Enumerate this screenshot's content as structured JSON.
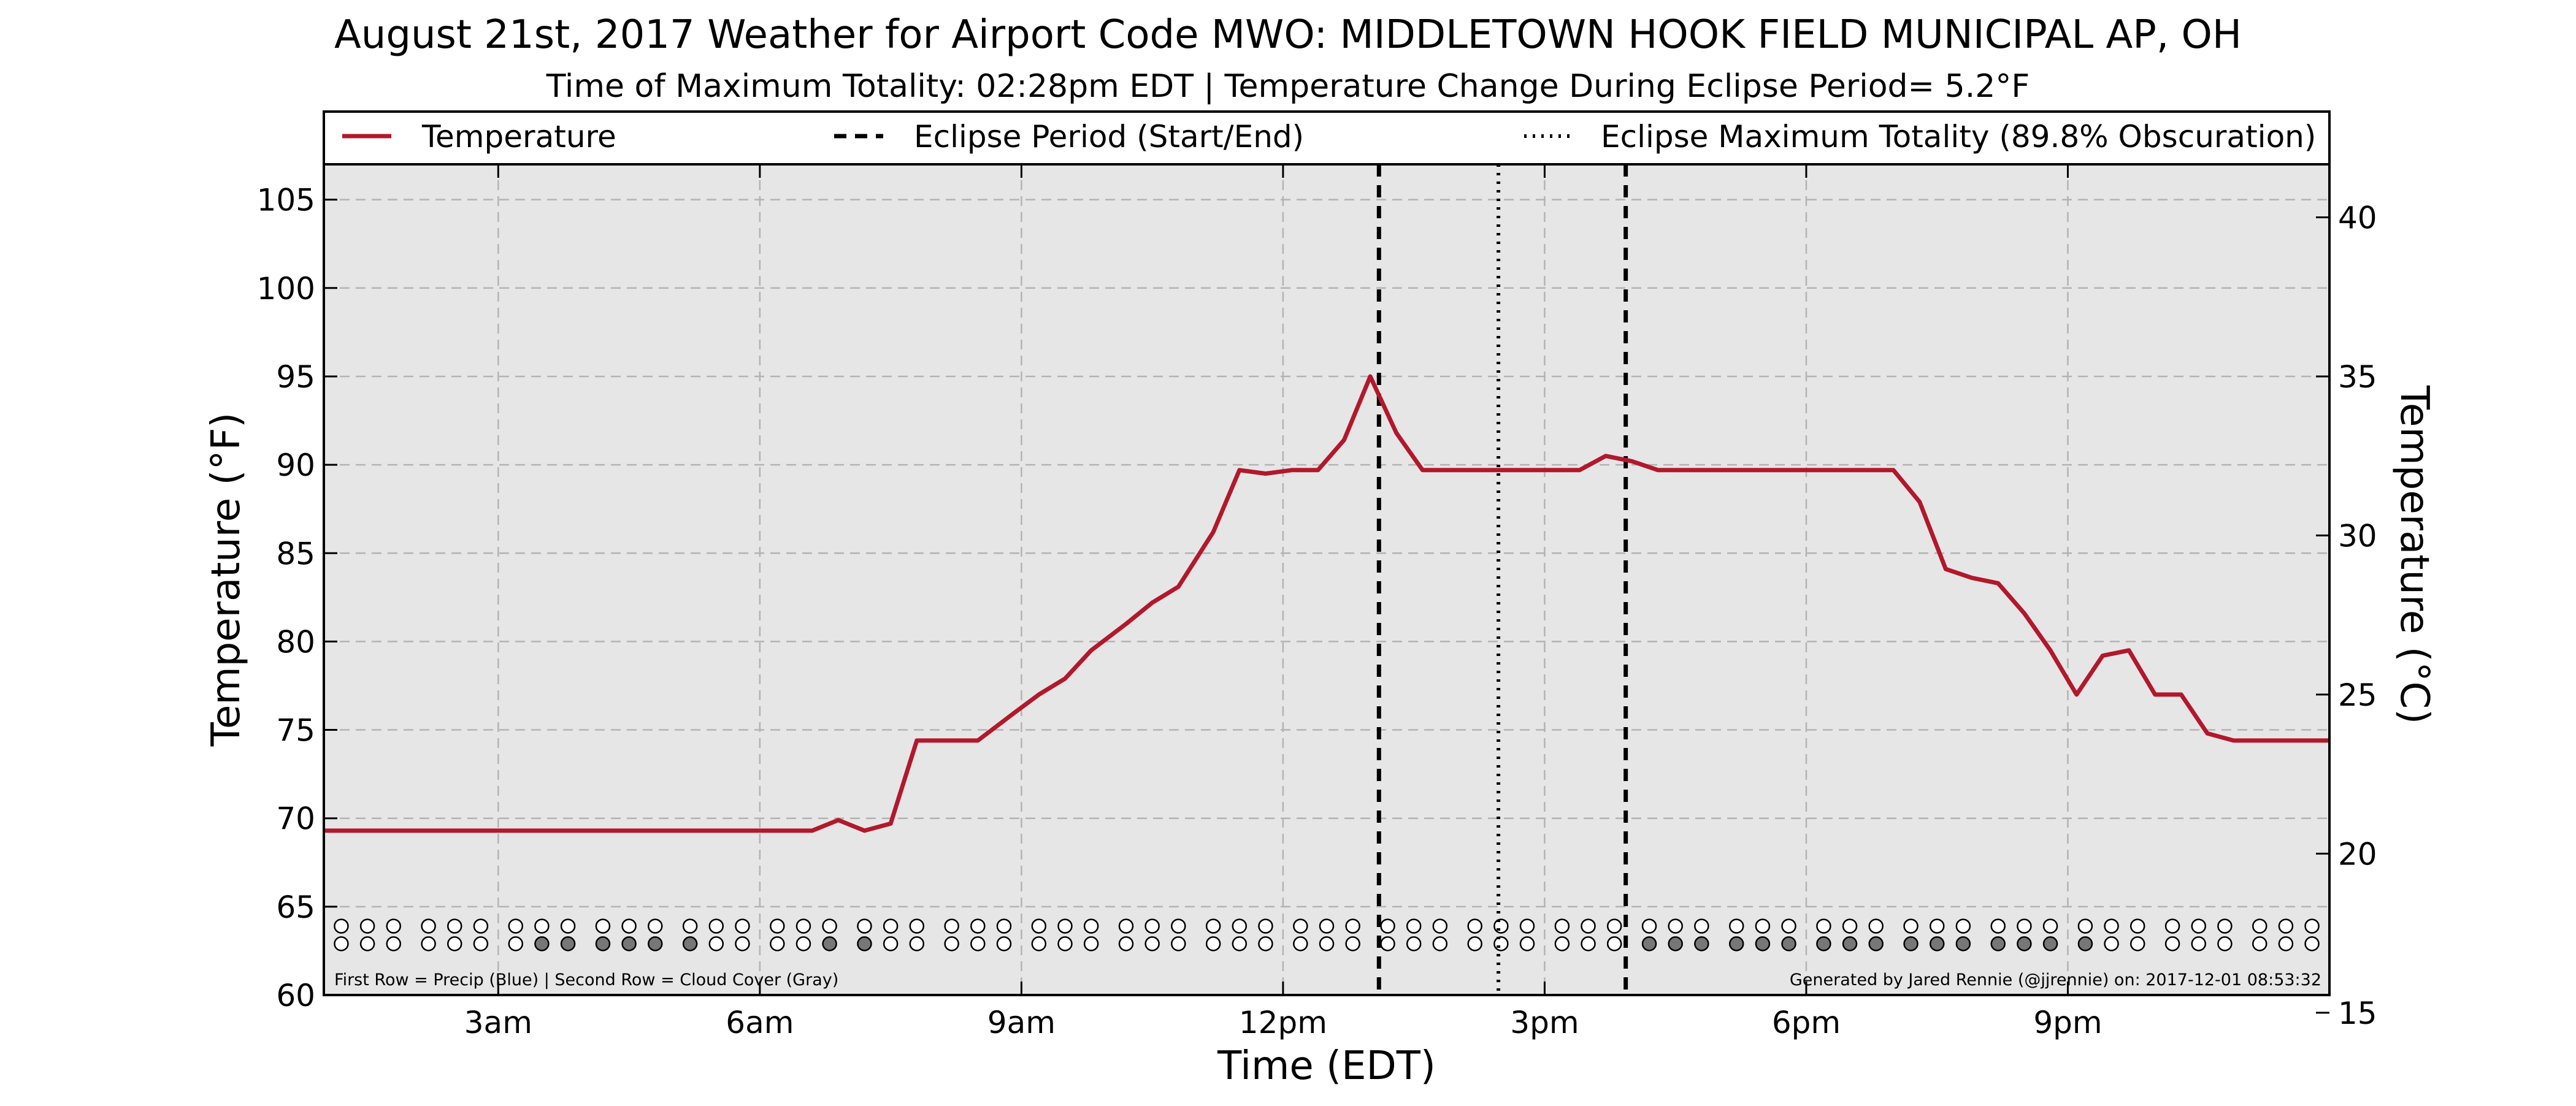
{
  "chart_data": {
    "type": "line",
    "title": "August 21st, 2017 Weather for Airport Code MWO: MIDDLETOWN HOOK FIELD MUNICIPAL AP, OH",
    "subtitle": "Time of Maximum Totality: 02:28pm EDT | Temperature Change During Eclipse Period= 5.2°F",
    "xlabel": "Time (EDT)",
    "ylabel_left": "Temperature (°F)",
    "ylabel_right": "Temperature (°C)",
    "xlim": [
      1.0,
      24.0
    ],
    "ylim": [
      60,
      107
    ],
    "ylim_celsius": [
      15,
      41.67
    ],
    "x_ticks": [
      {
        "x": 3,
        "label": "3am"
      },
      {
        "x": 6,
        "label": "6am"
      },
      {
        "x": 9,
        "label": "9am"
      },
      {
        "x": 12,
        "label": "12pm"
      },
      {
        "x": 15,
        "label": "3pm"
      },
      {
        "x": 18,
        "label": "6pm"
      },
      {
        "x": 21,
        "label": "9pm"
      }
    ],
    "y_ticks_left": [
      60,
      65,
      70,
      75,
      80,
      85,
      90,
      95,
      100,
      105
    ],
    "y_ticks_right": [
      15,
      20,
      25,
      30,
      35,
      40
    ],
    "grid": true,
    "legend": {
      "placement": "top",
      "entries": [
        {
          "label": "Temperature",
          "style": "solid",
          "color": "#b2182b"
        },
        {
          "label": "Eclipse Period (Start/End)",
          "style": "dashed",
          "color": "#000000"
        },
        {
          "label": "Eclipse Maximum Totality (89.8% Obscuration)",
          "style": "dotted",
          "color": "#000000"
        }
      ]
    },
    "series": [
      {
        "name": "Temperature",
        "color": "#b2182b",
        "x": [
          1.0,
          6.6,
          6.9,
          7.2,
          7.5,
          7.8,
          8.5,
          8.9,
          9.2,
          9.5,
          9.8,
          10.2,
          10.5,
          10.8,
          11.2,
          11.5,
          11.8,
          12.1,
          12.4,
          12.7,
          13.0,
          13.3,
          13.6,
          13.9,
          14.2,
          14.5,
          14.8,
          15.1,
          15.4,
          15.7,
          16.0,
          16.3,
          16.6,
          16.9,
          17.2,
          17.5,
          17.8,
          18.1,
          18.4,
          18.7,
          19.0,
          19.3,
          19.6,
          19.9,
          20.2,
          20.5,
          20.8,
          21.1,
          21.4,
          21.7,
          22.0,
          22.3,
          22.6,
          22.9,
          23.2,
          23.5,
          23.8,
          24.0
        ],
        "y": [
          69.3,
          69.3,
          69.9,
          69.3,
          69.7,
          74.4,
          74.4,
          75.9,
          77.0,
          77.9,
          79.5,
          81.0,
          82.2,
          83.1,
          86.2,
          89.7,
          89.5,
          89.7,
          89.7,
          91.4,
          95.0,
          91.8,
          89.7,
          89.7,
          89.7,
          89.7,
          89.7,
          89.7,
          89.7,
          90.5,
          90.2,
          89.7,
          89.7,
          89.7,
          89.7,
          89.7,
          89.7,
          89.7,
          89.7,
          89.7,
          89.7,
          87.9,
          84.1,
          83.6,
          83.3,
          81.6,
          79.5,
          77.0,
          79.2,
          79.5,
          77.0,
          77.0,
          74.8,
          74.4,
          74.4,
          74.4,
          74.4,
          74.4
        ]
      }
    ],
    "eclipse_period_lines_x": [
      13.1,
      15.93
    ],
    "eclipse_max_totality_x": 14.47,
    "observation_rows": {
      "first_row": "precip",
      "second_row": "cloud_cover",
      "x": [
        1.2,
        1.5,
        1.8,
        2.2,
        2.5,
        2.8,
        3.2,
        3.5,
        3.8,
        4.2,
        4.5,
        4.8,
        5.2,
        5.5,
        5.8,
        6.2,
        6.5,
        6.8,
        7.2,
        7.5,
        7.8,
        8.2,
        8.5,
        8.8,
        9.2,
        9.5,
        9.8,
        10.2,
        10.5,
        10.8,
        11.2,
        11.5,
        11.8,
        12.2,
        12.5,
        12.8,
        13.2,
        13.5,
        13.8,
        14.2,
        14.5,
        14.8,
        15.2,
        15.5,
        15.8,
        16.2,
        16.5,
        16.8,
        17.2,
        17.5,
        17.8,
        18.2,
        18.5,
        18.8,
        19.2,
        19.5,
        19.8,
        20.2,
        20.5,
        20.8,
        21.2,
        21.5,
        21.8,
        22.2,
        22.5,
        22.8,
        23.2,
        23.5,
        23.8
      ],
      "precip_filled": [
        0,
        0,
        0,
        0,
        0,
        0,
        0,
        0,
        0,
        0,
        0,
        0,
        0,
        0,
        0,
        0,
        0,
        0,
        0,
        0,
        0,
        0,
        0,
        0,
        0,
        0,
        0,
        0,
        0,
        0,
        0,
        0,
        0,
        0,
        0,
        0,
        0,
        0,
        0,
        0,
        0,
        0,
        0,
        0,
        0,
        0,
        0,
        0,
        0,
        0,
        0,
        0,
        0,
        0,
        0,
        0,
        0,
        0,
        0,
        0,
        0,
        0,
        0,
        0,
        0,
        0,
        0,
        0,
        0
      ],
      "cloud_filled": [
        0,
        0,
        0,
        0,
        0,
        0,
        0,
        1,
        1,
        1,
        1,
        1,
        1,
        0,
        0,
        0,
        0,
        1,
        1,
        0,
        0,
        0,
        0,
        0,
        0,
        0,
        0,
        0,
        0,
        0,
        0,
        0,
        0,
        0,
        0,
        0,
        0,
        0,
        0,
        0,
        0,
        0,
        0,
        0,
        0,
        1,
        1,
        1,
        1,
        1,
        1,
        1,
        1,
        1,
        1,
        1,
        1,
        1,
        1,
        1,
        1,
        0,
        0,
        0,
        0,
        0,
        0,
        0,
        0
      ],
      "cloud_filled_color": "#777777",
      "empty_color": "#ffffff"
    },
    "footer_left": "First Row = Precip (Blue) | Second Row = Cloud Cover (Gray)",
    "footer_right": "Generated by Jared Rennie (@jjrennie) on: 2017-12-01 08:53:32"
  },
  "colors": {
    "plot_background": "#e6e6e6",
    "temperature_line": "#b2182b",
    "grid": "#b3b3b3"
  }
}
